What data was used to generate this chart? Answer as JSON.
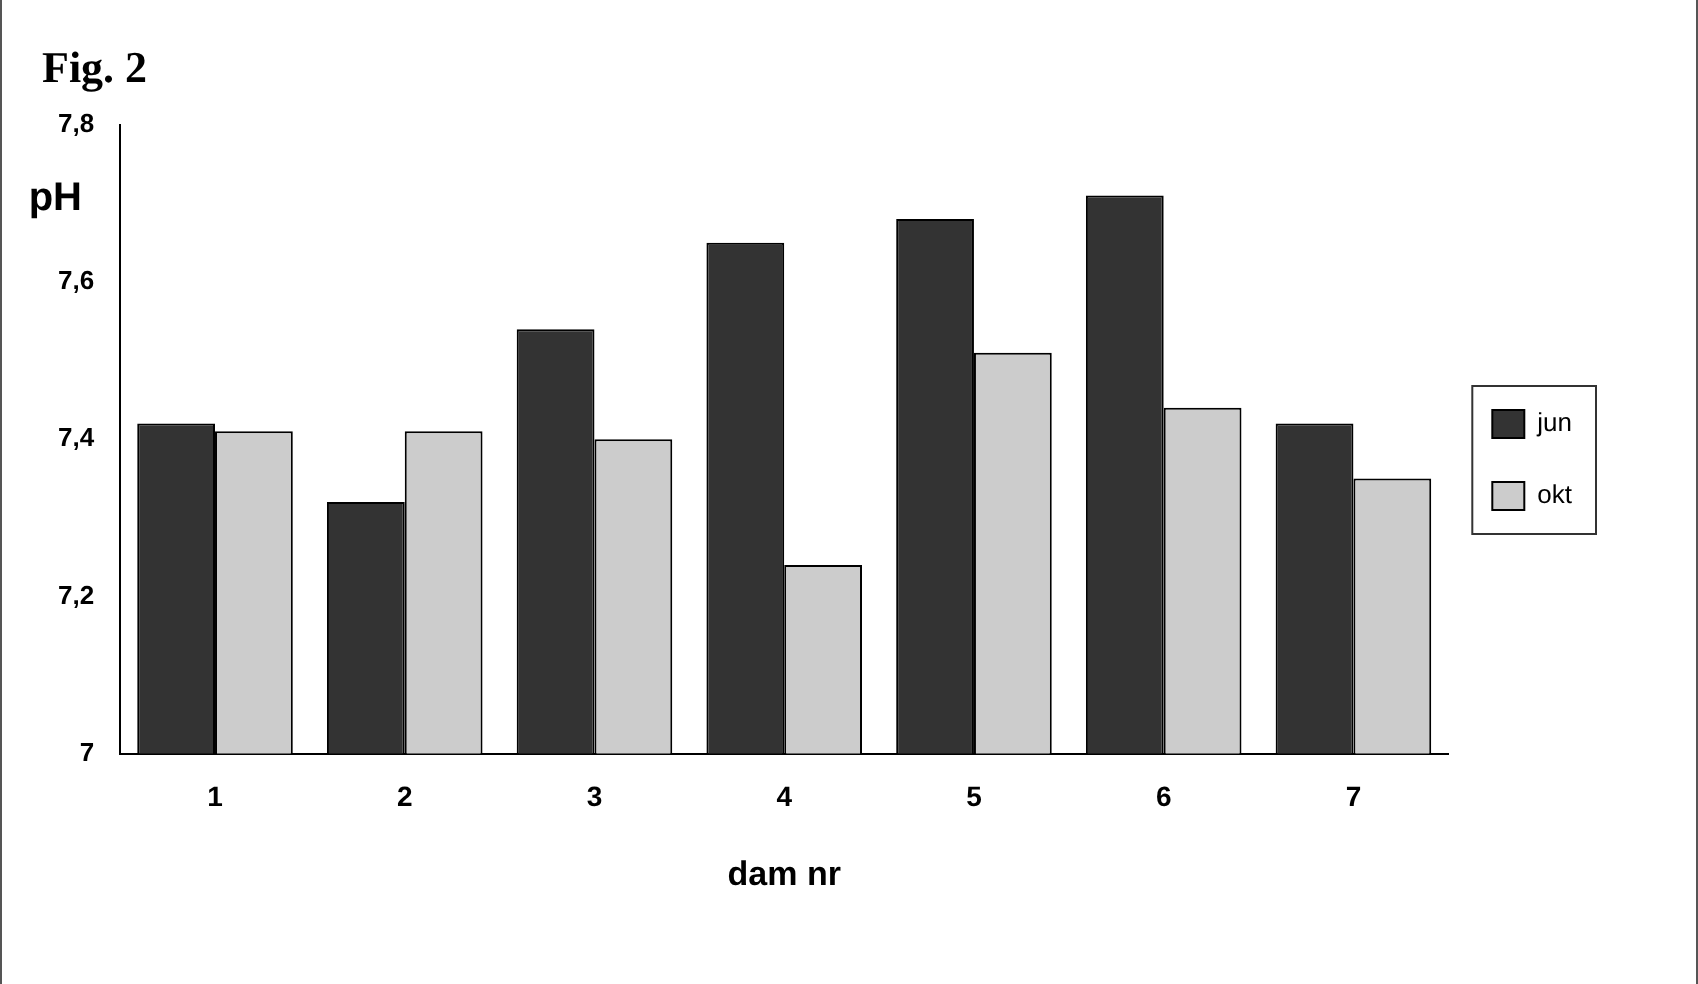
{
  "chart_data": {
    "type": "bar",
    "title": "Fig. 2",
    "xlabel": "dam nr",
    "ylabel": "pH",
    "categories": [
      "1",
      "2",
      "3",
      "4",
      "5",
      "6",
      "7"
    ],
    "series": [
      {
        "name": "jun",
        "color": "#333333",
        "values": [
          7.42,
          7.32,
          7.54,
          7.65,
          7.68,
          7.71,
          7.42
        ]
      },
      {
        "name": "okt",
        "color": "#cccccc",
        "values": [
          7.41,
          7.41,
          7.4,
          7.24,
          7.51,
          7.44,
          7.35
        ]
      }
    ],
    "ylim": [
      7,
      7.8
    ],
    "yticks": [
      7,
      {
        "value": 7.2,
        "label": "7,2"
      },
      {
        "value": 7.4,
        "label": "7,4"
      },
      {
        "value": 7.6,
        "label": "7,6"
      },
      {
        "value": 7.8,
        "label": "7,8"
      }
    ],
    "grid": false,
    "legend": "right"
  }
}
